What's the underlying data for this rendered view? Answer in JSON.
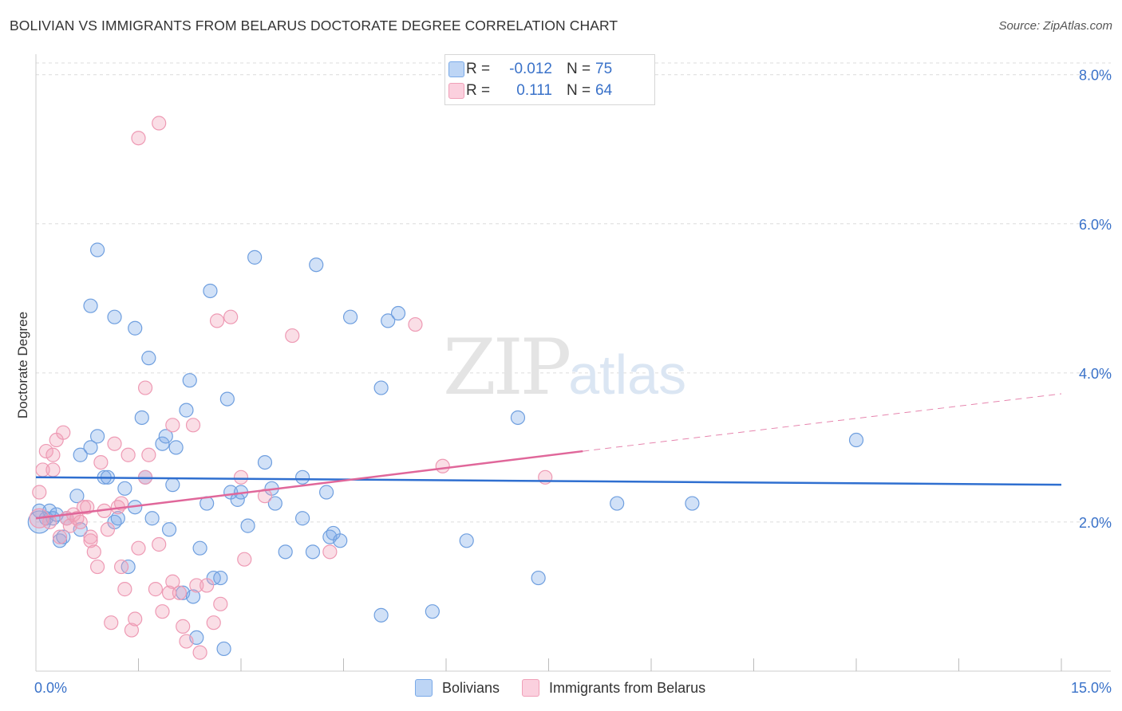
{
  "header": {
    "title": "BOLIVIAN VS IMMIGRANTS FROM BELARUS DOCTORATE DEGREE CORRELATION CHART",
    "source": "Source: ZipAtlas.com"
  },
  "watermark": {
    "zip": "ZIP",
    "atlas": "atlas"
  },
  "legend": {
    "rows": [
      {
        "r_label": "R =",
        "r_value": "-0.012",
        "n_label": "N =",
        "n_value": "75",
        "color": "#7aaae8"
      },
      {
        "r_label": "R =",
        "r_value": "0.111",
        "n_label": "N =",
        "n_value": "64",
        "color": "#f0a0b8"
      }
    ]
  },
  "bottom_legend": {
    "items": [
      {
        "label": "Bolivians",
        "color": "#7aaae8"
      },
      {
        "label": "Immigrants from Belarus",
        "color": "#f0a0b8"
      }
    ]
  },
  "chart_data": {
    "type": "scatter",
    "title": "BOLIVIAN VS IMMIGRANTS FROM BELARUS DOCTORATE DEGREE CORRELATION CHART",
    "xlabel": "",
    "ylabel": "Doctorate Degree",
    "xlim": [
      0,
      15
    ],
    "ylim": [
      0,
      8.2
    ],
    "x_tick_labels": [
      "0.0%",
      "15.0%"
    ],
    "y_tick_values": [
      2,
      4,
      6,
      8
    ],
    "y_tick_labels": [
      "2.0%",
      "4.0%",
      "6.0%",
      "8.0%"
    ],
    "grid": true,
    "colors": {
      "bolivians": "#7aaae8",
      "belarus": "#f0a0b8",
      "blue_line": "#2f6fd0",
      "pink_line": "#e0679a"
    },
    "series": [
      {
        "name": "Bolivians",
        "trend": {
          "x0": 0,
          "y0": 2.6,
          "x1": 15,
          "y1": 2.5
        },
        "points": [
          [
            0.05,
            2.15
          ],
          [
            0.15,
            2.05
          ],
          [
            0.2,
            2.15
          ],
          [
            0.25,
            2.05
          ],
          [
            0.3,
            2.1
          ],
          [
            0.35,
            1.75
          ],
          [
            0.4,
            1.8
          ],
          [
            0.45,
            2.05
          ],
          [
            0.6,
            2.35
          ],
          [
            0.65,
            1.9
          ],
          [
            0.65,
            2.9
          ],
          [
            0.8,
            3.0
          ],
          [
            0.9,
            3.15
          ],
          [
            1.0,
            2.6
          ],
          [
            1.05,
            2.6
          ],
          [
            1.15,
            2.0
          ],
          [
            1.2,
            2.05
          ],
          [
            1.3,
            2.45
          ],
          [
            1.35,
            1.4
          ],
          [
            1.45,
            2.2
          ],
          [
            1.55,
            3.4
          ],
          [
            1.6,
            2.6
          ],
          [
            1.65,
            4.2
          ],
          [
            1.7,
            2.05
          ],
          [
            1.85,
            3.05
          ],
          [
            1.9,
            3.15
          ],
          [
            1.95,
            1.9
          ],
          [
            2.0,
            2.5
          ],
          [
            2.05,
            3.0
          ],
          [
            2.15,
            1.05
          ],
          [
            2.2,
            3.5
          ],
          [
            2.25,
            3.9
          ],
          [
            2.3,
            1.0
          ],
          [
            2.35,
            0.45
          ],
          [
            2.4,
            1.65
          ],
          [
            2.5,
            2.25
          ],
          [
            2.6,
            1.25
          ],
          [
            2.7,
            1.25
          ],
          [
            2.75,
            0.3
          ],
          [
            2.8,
            3.65
          ],
          [
            2.85,
            2.4
          ],
          [
            2.95,
            2.3
          ],
          [
            3.1,
            1.95
          ],
          [
            3.2,
            5.55
          ],
          [
            3.35,
            2.8
          ],
          [
            3.45,
            2.45
          ],
          [
            3.5,
            2.25
          ],
          [
            3.65,
            1.6
          ],
          [
            3.9,
            2.6
          ],
          [
            3.9,
            2.05
          ],
          [
            4.05,
            1.6
          ],
          [
            4.1,
            5.45
          ],
          [
            4.25,
            2.4
          ],
          [
            4.3,
            1.8
          ],
          [
            4.35,
            1.85
          ],
          [
            4.45,
            1.75
          ],
          [
            4.6,
            4.75
          ],
          [
            5.05,
            0.75
          ],
          [
            5.05,
            3.8
          ],
          [
            5.15,
            4.7
          ],
          [
            5.3,
            4.8
          ],
          [
            5.8,
            0.8
          ],
          [
            6.3,
            1.75
          ],
          [
            7.05,
            3.4
          ],
          [
            7.35,
            1.25
          ],
          [
            8.5,
            2.25
          ],
          [
            9.6,
            2.25
          ],
          [
            12.0,
            3.1
          ],
          [
            0.8,
            4.9
          ],
          [
            0.9,
            5.65
          ],
          [
            1.15,
            4.75
          ],
          [
            1.45,
            4.6
          ],
          [
            2.55,
            5.1
          ],
          [
            3.0,
            2.4
          ],
          [
            0.05,
            2.0
          ]
        ]
      },
      {
        "name": "Immigrants from Belarus",
        "trend": {
          "x0": 0,
          "y0": 2.05,
          "x1": 8.0,
          "y1": 2.95,
          "dash_x1": 15,
          "dash_y1": 3.72
        },
        "points": [
          [
            0.05,
            2.4
          ],
          [
            0.1,
            2.7
          ],
          [
            0.15,
            2.95
          ],
          [
            0.2,
            2.0
          ],
          [
            0.25,
            2.7
          ],
          [
            0.3,
            3.1
          ],
          [
            0.35,
            1.8
          ],
          [
            0.4,
            3.2
          ],
          [
            0.45,
            2.05
          ],
          [
            0.5,
            1.95
          ],
          [
            0.55,
            2.1
          ],
          [
            0.6,
            2.05
          ],
          [
            0.65,
            2.0
          ],
          [
            0.7,
            2.2
          ],
          [
            0.75,
            2.2
          ],
          [
            0.8,
            1.8
          ],
          [
            0.8,
            1.75
          ],
          [
            0.85,
            1.6
          ],
          [
            0.9,
            1.4
          ],
          [
            0.95,
            2.8
          ],
          [
            1.0,
            2.15
          ],
          [
            1.05,
            1.9
          ],
          [
            1.1,
            0.65
          ],
          [
            1.15,
            3.05
          ],
          [
            1.2,
            2.2
          ],
          [
            1.25,
            1.4
          ],
          [
            1.3,
            1.1
          ],
          [
            1.35,
            2.9
          ],
          [
            1.4,
            0.55
          ],
          [
            1.45,
            0.7
          ],
          [
            1.5,
            1.65
          ],
          [
            1.6,
            2.6
          ],
          [
            1.65,
            2.9
          ],
          [
            1.75,
            1.1
          ],
          [
            1.8,
            1.7
          ],
          [
            1.85,
            0.8
          ],
          [
            1.95,
            1.05
          ],
          [
            2.0,
            1.2
          ],
          [
            2.1,
            1.05
          ],
          [
            2.15,
            0.6
          ],
          [
            2.2,
            0.4
          ],
          [
            2.3,
            3.3
          ],
          [
            2.35,
            1.15
          ],
          [
            2.4,
            0.25
          ],
          [
            2.5,
            1.15
          ],
          [
            2.6,
            0.65
          ],
          [
            2.65,
            4.7
          ],
          [
            2.7,
            0.9
          ],
          [
            2.85,
            4.75
          ],
          [
            3.0,
            2.6
          ],
          [
            3.05,
            1.5
          ],
          [
            3.35,
            2.35
          ],
          [
            3.75,
            4.5
          ],
          [
            4.3,
            1.6
          ],
          [
            5.55,
            4.65
          ],
          [
            5.95,
            2.75
          ],
          [
            7.45,
            2.6
          ],
          [
            1.5,
            7.15
          ],
          [
            1.8,
            7.35
          ],
          [
            1.6,
            3.8
          ],
          [
            2.0,
            3.3
          ],
          [
            0.25,
            2.9
          ],
          [
            0.05,
            2.05
          ],
          [
            1.25,
            2.25
          ]
        ]
      }
    ]
  }
}
